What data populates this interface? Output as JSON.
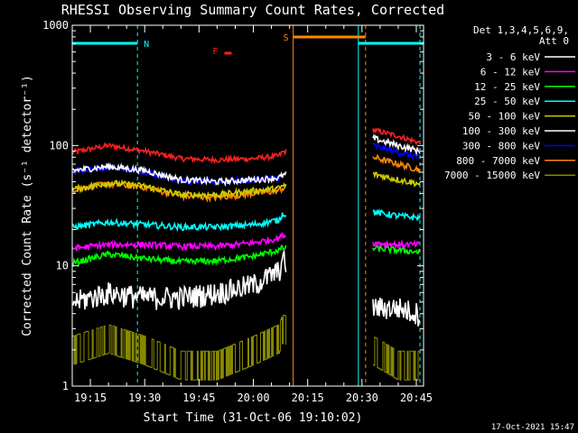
{
  "chart_data": {
    "type": "line",
    "title": "RHESSI Observing Summary Count Rates, Corrected",
    "xlabel": "Start Time (31-Oct-06 19:10:02)",
    "ylabel": "Corrected Count Rate (s⁻¹ detector⁻¹)",
    "y_scale": "log",
    "ylim": [
      1,
      1000
    ],
    "xlim": [
      "19:10",
      "20:47"
    ],
    "y_ticks": [
      {
        "value": 1,
        "label": "1"
      },
      {
        "value": 10,
        "label": "10"
      },
      {
        "value": 100,
        "label": "100"
      },
      {
        "value": 1000,
        "label": "1000"
      }
    ],
    "x_ticks": [
      {
        "value": "19:15",
        "label": "19:15"
      },
      {
        "value": "19:30",
        "label": "19:30"
      },
      {
        "value": "19:45",
        "label": "19:45"
      },
      {
        "value": "20:00",
        "label": "20:00"
      },
      {
        "value": "20:15",
        "label": "20:15"
      },
      {
        "value": "20:30",
        "label": "20:30"
      },
      {
        "value": "20:45",
        "label": "20:45"
      }
    ],
    "legend": {
      "header": [
        "Det 1,3,4,5,6,9,",
        "Att 0"
      ],
      "placement": "right"
    },
    "data_gaps": [
      [
        "20:09",
        "20:33"
      ]
    ],
    "series": [
      {
        "name": "3 - 6 keV",
        "color": "#ffffff",
        "x": [
          "19:10",
          "19:20",
          "19:30",
          "19:40",
          "19:50",
          "20:00",
          "20:07",
          "20:08",
          "20:33",
          "20:40",
          "20:46"
        ],
        "values": [
          5,
          6,
          5.5,
          5.5,
          6,
          7,
          9,
          11,
          4.5,
          4.5,
          4
        ]
      },
      {
        "name": "6 - 12 keV",
        "color": "#ff00ff",
        "x": [
          "19:10",
          "19:20",
          "19:30",
          "19:40",
          "19:50",
          "20:00",
          "20:07",
          "20:08",
          "20:33",
          "20:40",
          "20:46"
        ],
        "values": [
          14,
          15,
          15,
          14.5,
          14.5,
          15.5,
          17,
          18,
          15.5,
          15,
          15
        ]
      },
      {
        "name": "12 - 25 keV",
        "color": "#00ff00",
        "x": [
          "19:10",
          "19:20",
          "19:30",
          "19:40",
          "19:50",
          "20:00",
          "20:07",
          "20:08",
          "20:33",
          "20:40",
          "20:46"
        ],
        "values": [
          10.5,
          12.5,
          11.5,
          10.8,
          11,
          12,
          13.5,
          14,
          14,
          13.5,
          13
        ]
      },
      {
        "name": "25 - 50 keV",
        "color": "#00ffff",
        "x": [
          "19:10",
          "19:20",
          "19:30",
          "19:40",
          "19:50",
          "20:00",
          "20:07",
          "20:08",
          "20:33",
          "20:40",
          "20:46"
        ],
        "values": [
          21,
          23,
          22,
          21,
          21,
          22,
          24,
          27,
          28,
          26,
          25
        ]
      },
      {
        "name": "50 - 100 keV",
        "color": "#cccc00",
        "x": [
          "19:10",
          "19:20",
          "19:30",
          "19:40",
          "19:50",
          "20:00",
          "20:07",
          "20:08",
          "20:33",
          "20:40",
          "20:46"
        ],
        "values": [
          43,
          49,
          46,
          39,
          39,
          42,
          44,
          46,
          58,
          52,
          48
        ]
      },
      {
        "name": "100 - 300 keV",
        "color": "#ffffff",
        "x": [
          "19:10",
          "19:20",
          "19:30",
          "19:40",
          "19:50",
          "20:00",
          "20:07",
          "20:08",
          "20:33",
          "20:40",
          "20:46"
        ],
        "values": [
          62,
          67,
          62,
          52,
          50,
          52,
          54,
          56,
          115,
          100,
          90
        ]
      },
      {
        "name": "300 - 800 keV",
        "color": "#0000ff",
        "x": [
          "19:10",
          "19:20",
          "19:30",
          "19:40",
          "19:50",
          "20:00",
          "20:07",
          "20:08",
          "20:33",
          "20:40",
          "20:46"
        ],
        "values": [
          62,
          66,
          61,
          51,
          50,
          52,
          54,
          56,
          100,
          88,
          80
        ]
      },
      {
        "name": "800 - 7000 keV",
        "color": "#ff8800",
        "x": [
          "19:10",
          "19:20",
          "19:30",
          "19:40",
          "19:50",
          "20:00",
          "20:07",
          "20:08",
          "20:33",
          "20:40",
          "20:46"
        ],
        "values": [
          43,
          48,
          45,
          38,
          37,
          40,
          42,
          44,
          80,
          70,
          63
        ]
      },
      {
        "name": "7000 - 15000 keV",
        "color": "#888800",
        "x": [
          "19:10",
          "19:20",
          "19:30",
          "19:40",
          "19:50",
          "20:00",
          "20:07",
          "20:08",
          "20:33",
          "20:40",
          "20:46"
        ],
        "values": [
          2,
          2.5,
          2,
          1.5,
          1.5,
          2,
          2.5,
          3,
          2,
          1.5,
          1.5
        ]
      }
    ],
    "flare_curve": {
      "color": "#ff2020",
      "x": [
        "19:10",
        "19:20",
        "19:30",
        "19:40",
        "19:50",
        "20:00",
        "20:07",
        "20:08",
        "20:33",
        "20:40",
        "20:46"
      ],
      "values": [
        88,
        100,
        90,
        78,
        76,
        78,
        82,
        88,
        135,
        120,
        105
      ]
    },
    "annotations": [
      {
        "label": "N",
        "color": "#00ffff",
        "kind": "night",
        "segments": [
          [
            "19:10",
            "19:28"
          ],
          [
            "20:29",
            "20:47"
          ]
        ]
      },
      {
        "label": "S",
        "color": "#ff8800",
        "kind": "saa",
        "segments": [
          [
            "20:11",
            "20:31"
          ]
        ]
      },
      {
        "label": "F",
        "color": "#ff2020",
        "kind": "flare",
        "segments": [
          [
            "19:52",
            "19:54"
          ]
        ]
      }
    ],
    "vertical_lines": [
      {
        "x": "19:10",
        "color": "#00ffff",
        "style": "solid"
      },
      {
        "x": "19:28",
        "color": "#00ffff",
        "style": "dashed"
      },
      {
        "x": "20:11",
        "color": "#ff8800",
        "style": "solid"
      },
      {
        "x": "20:29",
        "color": "#00ffff",
        "style": "solid"
      },
      {
        "x": "20:31",
        "color": "#ff8800",
        "style": "dashed"
      },
      {
        "x": "20:46",
        "color": "#00ffff",
        "style": "dashed"
      }
    ]
  },
  "footer_date": "17-Oct-2021 15:47"
}
